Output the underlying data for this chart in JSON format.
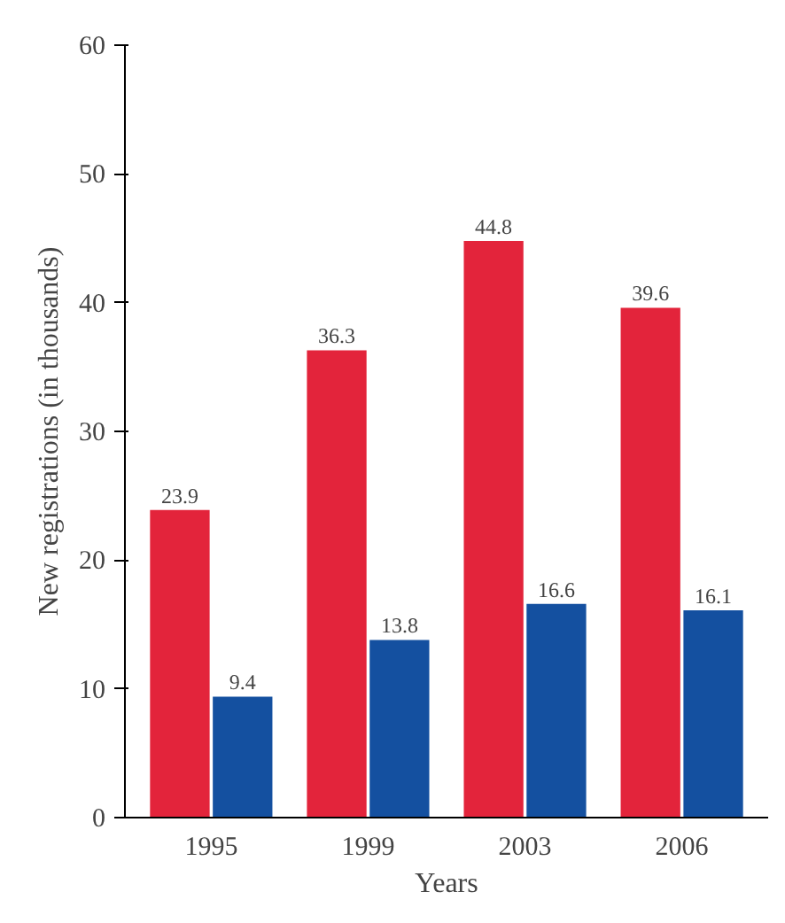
{
  "chart_data": {
    "type": "bar",
    "xlabel": "Years",
    "ylabel": "New registrations (in thousands)",
    "categories": [
      "1995",
      "1999",
      "2003",
      "2006"
    ],
    "series": [
      {
        "color": "#e3243b",
        "values": [
          23.9,
          36.3,
          44.8,
          39.6
        ]
      },
      {
        "color": "#1450a0",
        "values": [
          9.4,
          13.8,
          16.6,
          16.1
        ]
      }
    ],
    "ylim": [
      0,
      60
    ],
    "yticks": [
      0,
      10,
      20,
      30,
      40,
      50,
      60
    ],
    "data_labels": true
  }
}
